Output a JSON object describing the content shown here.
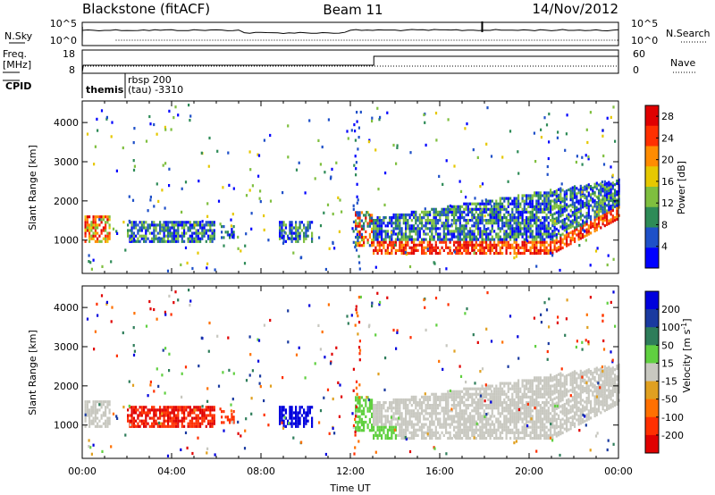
{
  "header": {
    "left_title": "Blackstone (fitACF)",
    "center_title": "Beam 11",
    "right_title": "14/Nov/2012"
  },
  "top_panels": {
    "nsky_label": "N.Sky",
    "nsearch_label": "N.Search",
    "freq_label_line1": "Freq.",
    "freq_label_line2": "[MHz]",
    "nave_label": "Nave",
    "cpid_label": "CPID",
    "nsky_ticks": [
      "10^5",
      "10^0"
    ],
    "nsearch_ticks": [
      "10^5",
      "10^0"
    ],
    "freq_ticks": [
      "18",
      "8"
    ],
    "nave_ticks": [
      "60",
      "0"
    ],
    "cpid_entries": [
      {
        "text": "themis",
        "start_hour": 0.0
      },
      {
        "text": "rbsp 200",
        "start_hour": 1.95
      },
      {
        "text": "(tau) -3310",
        "start_hour": 1.95
      }
    ]
  },
  "chart_data": [
    {
      "type": "heatmap",
      "name": "power",
      "xlabel": "",
      "ylabel": "Slant Range [km]",
      "x_ticks": [
        "00:00",
        "04:00",
        "08:00",
        "12:00",
        "16:00",
        "20:00",
        "00:00"
      ],
      "xlim": [
        0,
        24
      ],
      "ylim": [
        150,
        4550
      ],
      "y_ticks": [
        1000,
        2000,
        3000,
        4000
      ],
      "colorbar": {
        "label": "Power [dB]",
        "ticks": [
          4,
          8,
          12,
          16,
          20,
          24,
          28
        ],
        "range": [
          0,
          30
        ],
        "colors": [
          "#0000ff",
          "#1e50c8",
          "#2e8b57",
          "#7fbf3f",
          "#e6c800",
          "#ff8c00",
          "#ff3000",
          "#e00000"
        ]
      }
    },
    {
      "type": "heatmap",
      "name": "velocity",
      "xlabel": "Time UT",
      "ylabel": "Slant Range [km]",
      "x_ticks": [
        "00:00",
        "04:00",
        "08:00",
        "12:00",
        "16:00",
        "20:00",
        "00:00"
      ],
      "xlim": [
        0,
        24
      ],
      "ylim": [
        150,
        4550
      ],
      "y_ticks": [
        1000,
        2000,
        3000,
        4000
      ],
      "colorbar": {
        "label": "Velocity [m s^-1]",
        "ticks": [
          "200",
          "100",
          "50",
          "15",
          "-15",
          "-50",
          "-100",
          "-200"
        ],
        "colors": [
          "#0000dd",
          "#1a3aa0",
          "#2e7d5a",
          "#60d040",
          "#c8c8c0",
          "#e0a020",
          "#ff7000",
          "#ff3000",
          "#e00000"
        ]
      }
    }
  ]
}
